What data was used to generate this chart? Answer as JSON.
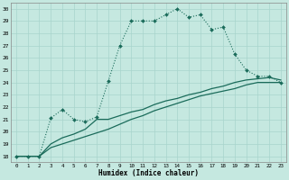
{
  "xlabel": "Humidex (Indice chaleur)",
  "bg_color": "#c5e8e0",
  "grid_color": "#a8d4cc",
  "line_color": "#1a6b5a",
  "xlim": [
    -0.5,
    23.5
  ],
  "ylim": [
    17.5,
    30.5
  ],
  "yticks": [
    18,
    19,
    20,
    21,
    22,
    23,
    24,
    25,
    26,
    27,
    28,
    29,
    30
  ],
  "xticks": [
    0,
    1,
    2,
    3,
    4,
    5,
    6,
    7,
    8,
    9,
    10,
    11,
    12,
    13,
    14,
    15,
    16,
    17,
    18,
    19,
    20,
    21,
    22,
    23
  ],
  "line1_x": [
    0,
    1,
    2,
    3,
    4,
    5,
    6,
    7,
    8,
    9,
    10,
    11,
    12,
    13,
    14,
    15,
    16,
    17,
    18,
    19,
    20,
    21,
    22,
    23
  ],
  "line1_y": [
    18,
    18,
    18,
    21.1,
    21.8,
    21.0,
    20.8,
    21.2,
    24.1,
    27.0,
    29.0,
    29.0,
    29.0,
    29.5,
    30.0,
    29.3,
    29.5,
    28.3,
    28.5,
    26.3,
    25.0,
    24.5,
    24.5,
    24.0
  ],
  "line2_x": [
    0,
    1,
    2,
    3,
    4,
    5,
    6,
    7,
    8,
    9,
    10,
    11,
    12,
    13,
    14,
    15,
    16,
    17,
    18,
    19,
    20,
    21,
    22,
    23
  ],
  "line2_y": [
    18,
    18,
    18,
    19.0,
    19.5,
    19.8,
    20.2,
    21.0,
    21.0,
    21.3,
    21.6,
    21.8,
    22.2,
    22.5,
    22.7,
    23.0,
    23.2,
    23.5,
    23.7,
    24.0,
    24.2,
    24.3,
    24.4,
    24.2
  ],
  "line3_x": [
    0,
    1,
    2,
    3,
    4,
    5,
    6,
    7,
    8,
    9,
    10,
    11,
    12,
    13,
    14,
    15,
    16,
    17,
    18,
    19,
    20,
    21,
    22,
    23
  ],
  "line3_y": [
    18,
    18,
    18,
    18.7,
    19.0,
    19.3,
    19.6,
    19.9,
    20.2,
    20.6,
    21.0,
    21.3,
    21.7,
    22.0,
    22.3,
    22.6,
    22.9,
    23.1,
    23.3,
    23.5,
    23.8,
    24.0,
    24.0,
    24.0
  ]
}
